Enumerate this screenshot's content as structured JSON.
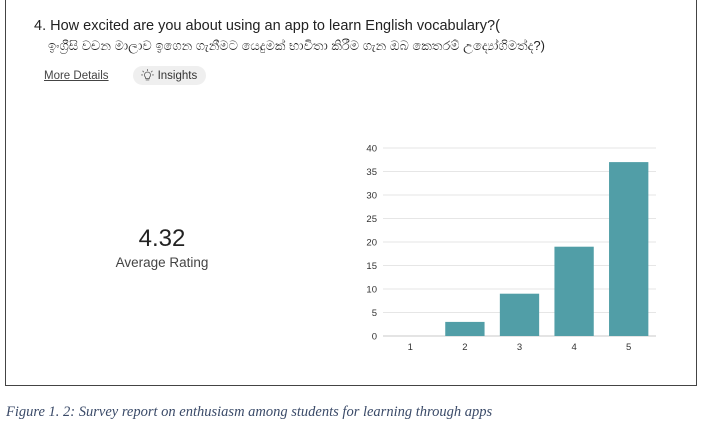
{
  "question": {
    "line1": "4. How excited are you about using an app to learn English vocabulary?(",
    "line2": "ඉංග්‍රීසි වචන මාලාව ඉගෙන ගැනීමට යෙදුමක් භාවිතා කිරීම ගැන ඔබ කෙතරම් උද්‍යෝගිමත්ද?)"
  },
  "links": {
    "more_details": "More Details",
    "insights": "Insights",
    "insights_icon": "lightbulb-icon"
  },
  "rating": {
    "value": "4.32",
    "label": "Average Rating"
  },
  "chart_data": {
    "type": "bar",
    "categories": [
      "1",
      "2",
      "3",
      "4",
      "5"
    ],
    "values": [
      0,
      3,
      9,
      19,
      37
    ],
    "ylim": [
      0,
      40
    ],
    "yticks": [
      0,
      5,
      10,
      15,
      20,
      25,
      30,
      35,
      40
    ],
    "grid": true,
    "bar_color": "#519ea7"
  },
  "caption": "Figure 1. 2: Survey report on enthusiasm among students for learning through apps"
}
